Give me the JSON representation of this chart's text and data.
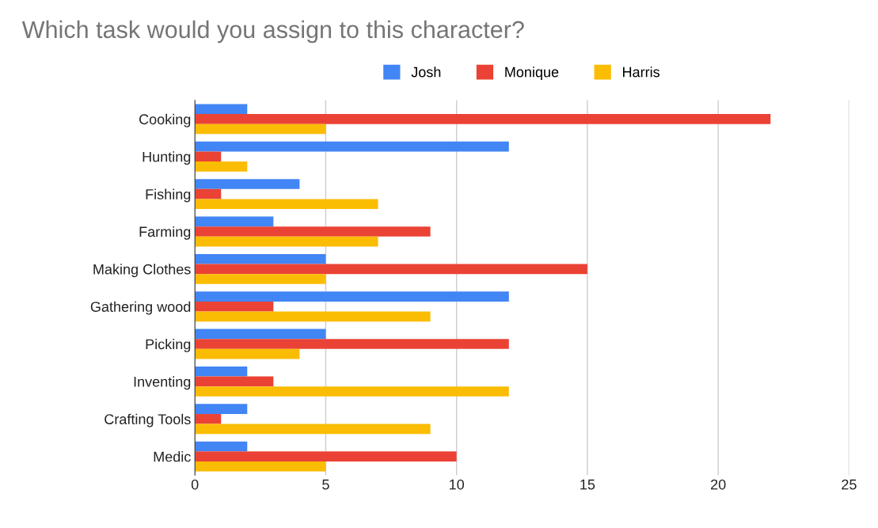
{
  "chart_data": {
    "type": "bar",
    "orientation": "horizontal",
    "title": "Which task would you assign to this character?",
    "categories": [
      "Cooking",
      "Hunting",
      "Fishing",
      "Farming",
      "Making Clothes",
      "Gathering wood",
      "Picking",
      "Inventing",
      "Crafting Tools",
      "Medic"
    ],
    "series": [
      {
        "name": "Josh",
        "color": "#4285f4",
        "values": [
          2,
          12,
          4,
          3,
          5,
          12,
          5,
          2,
          2,
          2
        ]
      },
      {
        "name": "Monique",
        "color": "#ea4335",
        "values": [
          22,
          1,
          1,
          9,
          15,
          3,
          12,
          3,
          1,
          10
        ]
      },
      {
        "name": "Harris",
        "color": "#fbbc04",
        "values": [
          5,
          2,
          7,
          7,
          5,
          9,
          4,
          12,
          9,
          5
        ]
      }
    ],
    "xlim": [
      0,
      25
    ],
    "xticks": [
      0,
      5,
      10,
      15,
      20,
      25
    ],
    "grid": "x",
    "legend": "top"
  }
}
